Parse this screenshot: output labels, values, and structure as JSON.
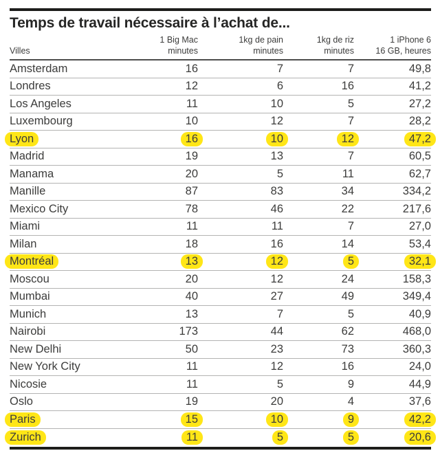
{
  "title": "Temps de travail nécessaire à l’achat de...",
  "chart_data": {
    "type": "table",
    "title": "Temps de travail nécessaire à l’achat de...",
    "highlight_color": "#ffe617",
    "highlighted_cities": [
      "Lyon",
      "Montréal",
      "Paris",
      "Zurich"
    ],
    "columns": [
      {
        "line1": "",
        "line2": "Villes"
      },
      {
        "line1": "1 Big Mac",
        "line2": "minutes"
      },
      {
        "line1": "1kg de pain",
        "line2": "minutes"
      },
      {
        "line1": "1kg de riz",
        "line2": "minutes"
      },
      {
        "line1": "1 iPhone 6",
        "line2": "16 GB, heures"
      }
    ],
    "rows": [
      {
        "city": "Amsterdam",
        "big_mac": "16",
        "pain": "7",
        "riz": "7",
        "iphone": "49,8",
        "highlighted": false
      },
      {
        "city": "Londres",
        "big_mac": "12",
        "pain": "6",
        "riz": "16",
        "iphone": "41,2",
        "highlighted": false
      },
      {
        "city": "Los Angeles",
        "big_mac": "11",
        "pain": "10",
        "riz": "5",
        "iphone": "27,2",
        "highlighted": false
      },
      {
        "city": "Luxembourg",
        "big_mac": "10",
        "pain": "12",
        "riz": "7",
        "iphone": "28,2",
        "highlighted": false
      },
      {
        "city": "Lyon",
        "big_mac": "16",
        "pain": "10",
        "riz": "12",
        "iphone": "47,2",
        "highlighted": true
      },
      {
        "city": "Madrid",
        "big_mac": "19",
        "pain": "13",
        "riz": "7",
        "iphone": "60,5",
        "highlighted": false
      },
      {
        "city": "Manama",
        "big_mac": "20",
        "pain": "5",
        "riz": "11",
        "iphone": "62,7",
        "highlighted": false
      },
      {
        "city": "Manille",
        "big_mac": "87",
        "pain": "83",
        "riz": "34",
        "iphone": "334,2",
        "highlighted": false
      },
      {
        "city": "Mexico City",
        "big_mac": "78",
        "pain": "46",
        "riz": "22",
        "iphone": "217,6",
        "highlighted": false
      },
      {
        "city": "Miami",
        "big_mac": "11",
        "pain": "11",
        "riz": "7",
        "iphone": "27,0",
        "highlighted": false
      },
      {
        "city": "Milan",
        "big_mac": "18",
        "pain": "16",
        "riz": "14",
        "iphone": "53,4",
        "highlighted": false
      },
      {
        "city": "Montréal",
        "big_mac": "13",
        "pain": "12",
        "riz": "5",
        "iphone": "32,1",
        "highlighted": true
      },
      {
        "city": "Moscou",
        "big_mac": "20",
        "pain": "12",
        "riz": "24",
        "iphone": "158,3",
        "highlighted": false
      },
      {
        "city": "Mumbai",
        "big_mac": "40",
        "pain": "27",
        "riz": "49",
        "iphone": "349,4",
        "highlighted": false
      },
      {
        "city": "Munich",
        "big_mac": "13",
        "pain": "7",
        "riz": "5",
        "iphone": "40,9",
        "highlighted": false
      },
      {
        "city": "Nairobi",
        "big_mac": "173",
        "pain": "44",
        "riz": "62",
        "iphone": "468,0",
        "highlighted": false
      },
      {
        "city": "New Delhi",
        "big_mac": "50",
        "pain": "23",
        "riz": "73",
        "iphone": "360,3",
        "highlighted": false
      },
      {
        "city": "New York City",
        "big_mac": "11",
        "pain": "12",
        "riz": "16",
        "iphone": "24,0",
        "highlighted": false
      },
      {
        "city": "Nicosie",
        "big_mac": "11",
        "pain": "5",
        "riz": "9",
        "iphone": "44,9",
        "highlighted": false
      },
      {
        "city": "Oslo",
        "big_mac": "19",
        "pain": "20",
        "riz": "4",
        "iphone": "37,6",
        "highlighted": false
      },
      {
        "city": "Paris",
        "big_mac": "15",
        "pain": "10",
        "riz": "9",
        "iphone": "42,2",
        "highlighted": true
      },
      {
        "city": "Zurich",
        "big_mac": "11",
        "pain": "5",
        "riz": "5",
        "iphone": "20,6",
        "highlighted": true
      }
    ]
  }
}
